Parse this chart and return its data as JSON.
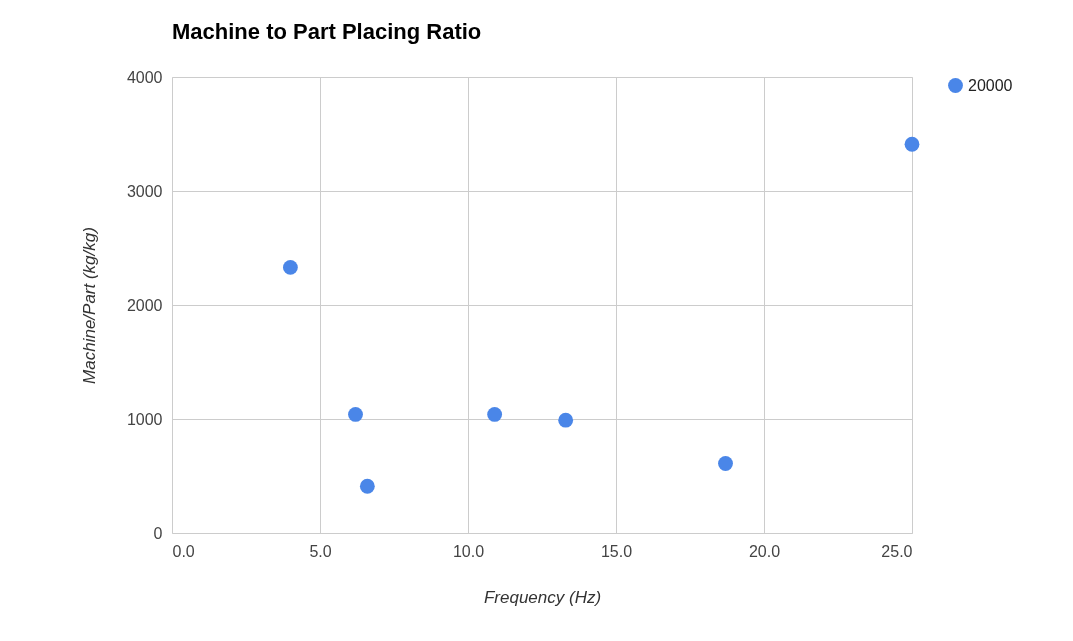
{
  "chart_data": {
    "type": "scatter",
    "title": "Machine to Part Placing Ratio",
    "xlabel": "Frequency (Hz)",
    "ylabel": "Machine/Part (kg/kg)",
    "x": [
      4.0,
      6.2,
      6.6,
      10.9,
      13.3,
      18.7,
      25.0
    ],
    "series": [
      {
        "name": "20000",
        "color": "#4a86e8",
        "values": [
          2330,
          1040,
          410,
          1040,
          990,
          610,
          3410
        ]
      }
    ],
    "xlim": [
      0,
      25
    ],
    "xticks": [
      {
        "value": 0,
        "label": "0.0"
      },
      {
        "value": 5,
        "label": "5.0"
      },
      {
        "value": 10,
        "label": "10.0"
      },
      {
        "value": 15,
        "label": "15.0"
      },
      {
        "value": 20,
        "label": "20.0"
      },
      {
        "value": 25,
        "label": "25.0"
      }
    ],
    "ylim": [
      0,
      4000
    ],
    "yticks": [
      0,
      1000,
      2000,
      3000,
      4000
    ],
    "grid": true,
    "legend": "top right",
    "marker": "circle"
  }
}
